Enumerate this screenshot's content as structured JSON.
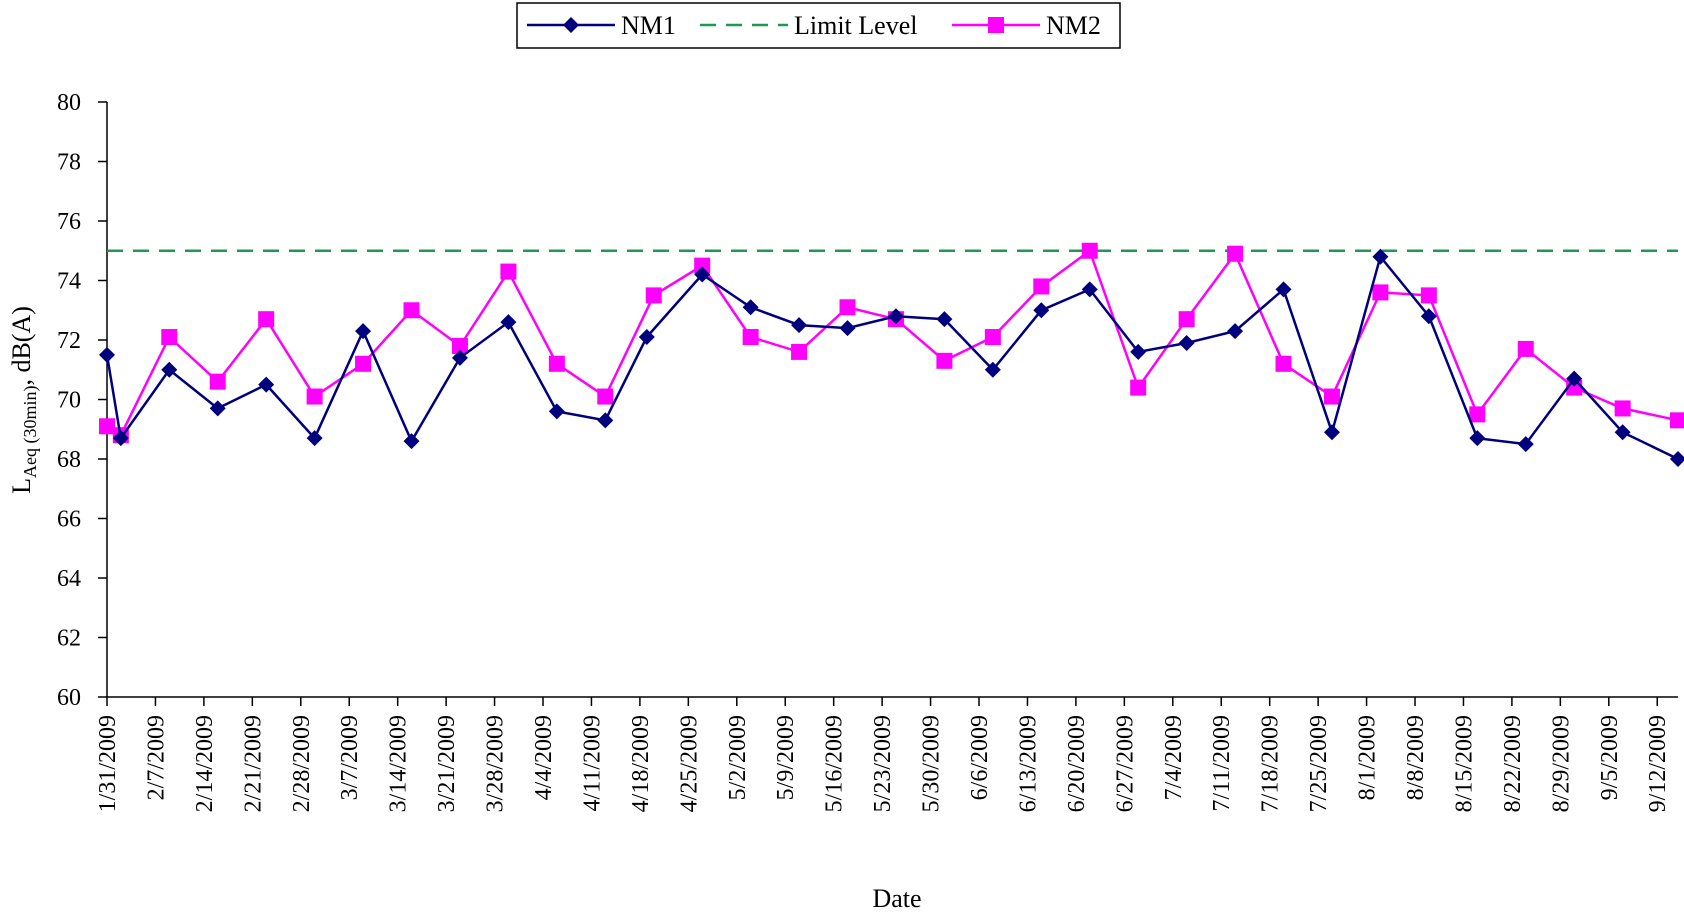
{
  "chart_data": {
    "type": "line",
    "title": "",
    "xlabel": "Date",
    "ylabel": {
      "main": "L",
      "sub": "Aeq (30min)",
      "tail": ", dB(A)"
    },
    "ylim": [
      60,
      80
    ],
    "yticks": [
      "60",
      "62",
      "64",
      "66",
      "68",
      "70",
      "72",
      "74",
      "76",
      "78",
      "80"
    ],
    "x_range_days": [
      0,
      227
    ],
    "x_tick_days": [
      0,
      7,
      14,
      21,
      28,
      35,
      42,
      49,
      56,
      63,
      70,
      77,
      84,
      91,
      98,
      105,
      112,
      119,
      126,
      133,
      140,
      147,
      154,
      161,
      168,
      175,
      182,
      189,
      196,
      203,
      210,
      217,
      224
    ],
    "x_tick_labels": [
      "1/31/2009",
      "2/7/2009",
      "2/14/2009",
      "2/21/2009",
      "2/28/2009",
      "3/7/2009",
      "3/14/2009",
      "3/21/2009",
      "3/28/2009",
      "4/4/2009",
      "4/11/2009",
      "4/18/2009",
      "4/25/2009",
      "5/2/2009",
      "5/9/2009",
      "5/16/2009",
      "5/23/2009",
      "5/30/2009",
      "6/6/2009",
      "6/13/2009",
      "6/20/2009",
      "6/27/2009",
      "7/4/2009",
      "7/11/2009",
      "7/18/2009",
      "7/25/2009",
      "8/1/2009",
      "8/8/2009",
      "8/15/2009",
      "8/22/2009",
      "8/29/2009",
      "9/5/2009",
      "9/12/2009"
    ],
    "grid": false,
    "legend_position": "top-center",
    "series": [
      {
        "name": "NM1",
        "color": "#00007f",
        "marker": "diamond",
        "dash": "solid",
        "x_days": [
          0,
          2,
          9,
          16,
          23,
          30,
          37,
          44,
          51,
          58,
          65,
          72,
          78,
          86,
          93,
          100,
          107,
          114,
          121,
          128,
          135,
          142,
          149,
          156,
          163,
          170,
          177,
          184,
          191,
          198,
          205,
          212,
          219,
          227
        ],
        "values": [
          71.5,
          68.7,
          71.0,
          69.7,
          70.5,
          68.7,
          72.3,
          68.6,
          71.4,
          72.6,
          69.6,
          69.3,
          72.1,
          74.2,
          73.1,
          72.5,
          72.4,
          72.8,
          72.7,
          71.0,
          73.0,
          73.7,
          71.6,
          71.9,
          72.3,
          73.7,
          68.9,
          74.8,
          72.8,
          68.7,
          68.5,
          70.7,
          68.9,
          68.0
        ]
      },
      {
        "name": "Limit Level",
        "color": "#1f9a55",
        "marker": "none",
        "dash": "dashed",
        "x_days": [
          0,
          227
        ],
        "values": [
          75,
          75
        ]
      },
      {
        "name": "NM2",
        "color": "#ff00ff",
        "marker": "square",
        "dash": "solid",
        "x_days": [
          0,
          2,
          9,
          16,
          23,
          30,
          37,
          44,
          51,
          58,
          65,
          72,
          79,
          86,
          93,
          100,
          107,
          114,
          121,
          128,
          135,
          142,
          149,
          156,
          163,
          170,
          177,
          184,
          191,
          198,
          205,
          212,
          219,
          227
        ],
        "values": [
          69.1,
          68.8,
          72.1,
          70.6,
          72.7,
          70.1,
          71.2,
          73.0,
          71.8,
          74.3,
          71.2,
          70.1,
          73.5,
          74.5,
          72.1,
          71.6,
          73.1,
          72.7,
          71.3,
          72.1,
          73.8,
          75.0,
          70.4,
          72.7,
          74.9,
          71.2,
          70.1,
          73.6,
          73.5,
          69.5,
          71.7,
          70.4,
          69.7,
          69.3
        ]
      }
    ]
  }
}
